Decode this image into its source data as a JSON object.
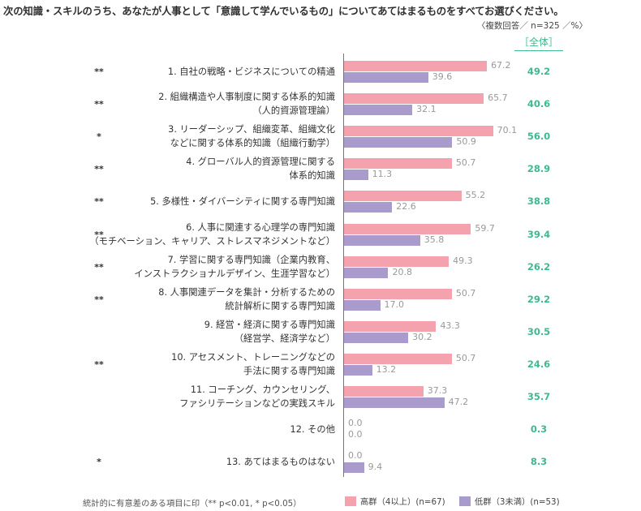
{
  "chart_data": {
    "type": "bar",
    "orientation": "horizontal",
    "title": "次の知識・スキルのうち、あなたが人事として「意識して学んでいるもの」についてあてはまるものをすべてお選びください。",
    "note": "〈複数回答／ n=325 ／%〉",
    "total_header": "［全体］",
    "footnote": "統計的に有意差のある項目に印（** p<0.01, * p<0.05）",
    "xlim": [
      0,
      100
    ],
    "series": [
      {
        "name": "高群（4以上）(n=67)",
        "color": "#f4a3ae",
        "values": [
          67.2,
          65.7,
          70.1,
          50.7,
          55.2,
          59.7,
          49.3,
          50.7,
          43.3,
          50.7,
          37.3,
          0.0,
          0.0
        ]
      },
      {
        "name": "低群（3未満）(n=53)",
        "color": "#a99bcb",
        "values": [
          39.6,
          32.1,
          50.9,
          11.3,
          22.6,
          35.8,
          20.8,
          17.0,
          30.2,
          13.2,
          47.2,
          0.0,
          9.4
        ]
      }
    ],
    "value_labels": {
      "high": [
        "67.2",
        "65.7",
        "70.1",
        "50.7",
        "55.2",
        "59.7",
        "49.3",
        "50.7",
        "43.3",
        "50.7",
        "37.3",
        "0.0",
        "0.0"
      ],
      "low": [
        "39.6",
        "32.1",
        "50.9",
        "11.3",
        "22.6",
        "35.8",
        "20.8",
        "17.0",
        "30.2",
        "13.2",
        "47.2",
        "0.0",
        "9.4"
      ]
    },
    "totals": [
      "49.2",
      "40.6",
      "56.0",
      "28.9",
      "38.8",
      "39.4",
      "26.2",
      "29.2",
      "30.5",
      "24.6",
      "35.7",
      "0.3",
      "8.3"
    ],
    "significance": [
      "**",
      "**",
      "*",
      "**",
      "**",
      "**",
      "**",
      "**",
      "",
      "**",
      "",
      "",
      "*"
    ],
    "categories": [
      [
        "1. 自社の戦略・ビジネスについての精通"
      ],
      [
        "2. 組織構造や人事制度に関する体系的知識",
        "（人的資源管理論）"
      ],
      [
        "3. リーダーシップ、組織変革、組織文化",
        "などに関する体系的知識（組織行動学）"
      ],
      [
        "4. グローバル人的資源管理に関する",
        "体系的知識"
      ],
      [
        "5. 多様性・ダイバーシティに関する専門知識"
      ],
      [
        "6. 人事に関連する心理学の専門知識",
        "（モチベーション、キャリア、ストレスマネジメントなど）"
      ],
      [
        "7. 学習に関する専門知識（企業内教育、",
        "インストラクショナルデザイン、生涯学習など）"
      ],
      [
        "8. 人事関連データを集計・分析するための",
        "統計解析に関する専門知識"
      ],
      [
        "9. 経営・経済に関する専門知識",
        "（経営学、経済学など）"
      ],
      [
        "10. アセスメント、トレーニングなどの",
        "手法に関する専門知識"
      ],
      [
        "11. コーチング、カウンセリング、",
        "ファシリテーションなどの実践スキル"
      ],
      [
        "12. その他"
      ],
      [
        "13. あてはまるものはない"
      ]
    ]
  }
}
